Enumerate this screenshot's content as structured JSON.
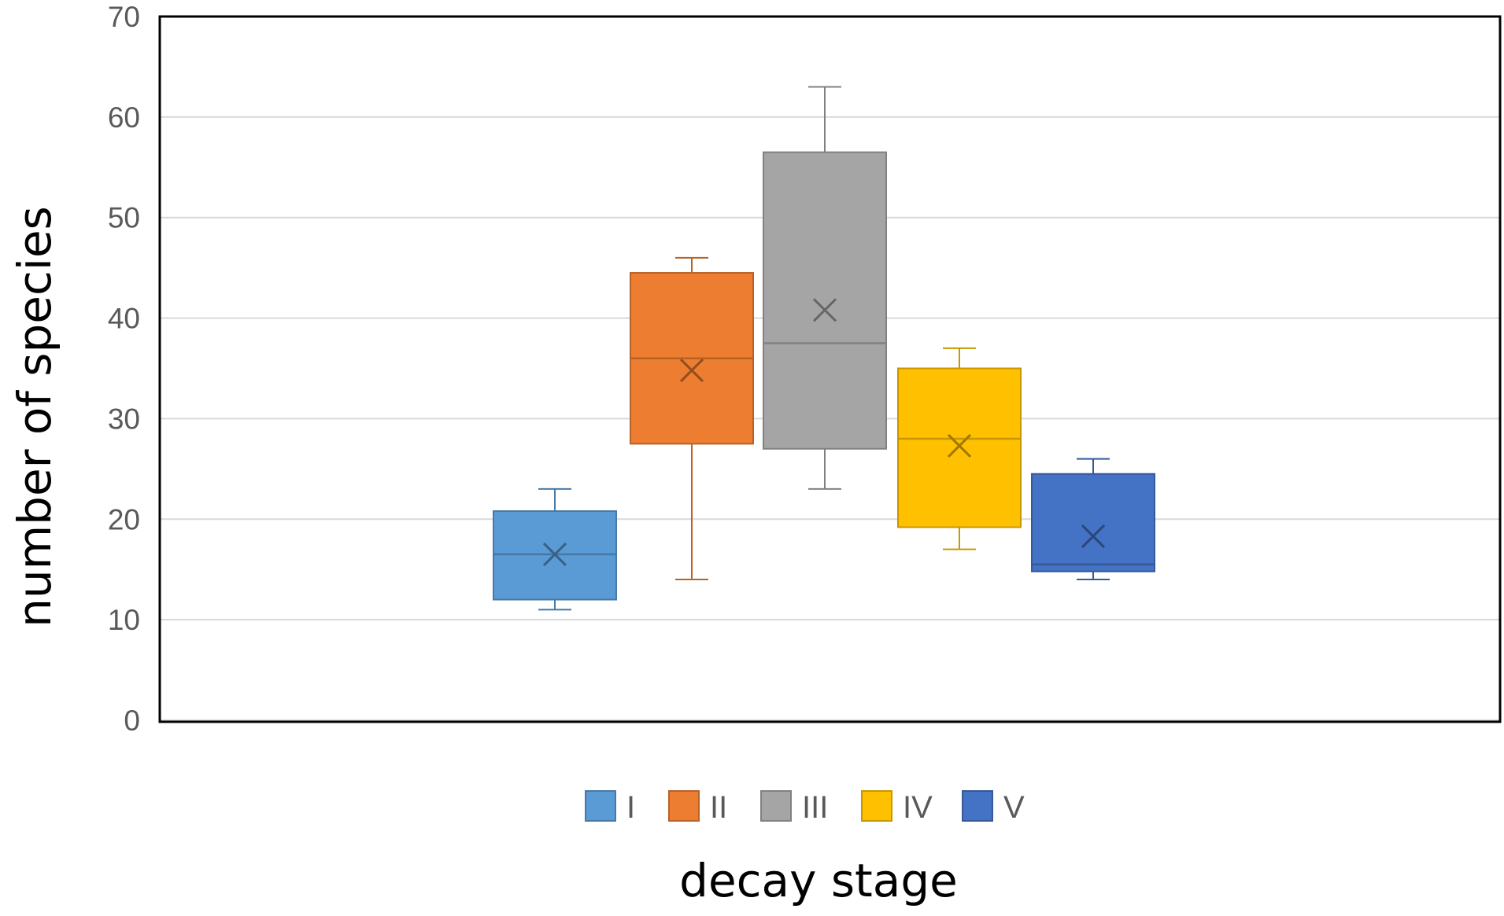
{
  "chart_data": {
    "type": "box",
    "xlabel": "decay stage",
    "ylabel": "number of species",
    "ylim": [
      0,
      70
    ],
    "yticks": [
      0,
      10,
      20,
      30,
      40,
      50,
      60,
      70
    ],
    "grid": true,
    "legend_position": "bottom",
    "series": [
      {
        "name": "I",
        "color": "#5B9BD5",
        "min": 11,
        "q1": 12,
        "median": 16.5,
        "mean": 16.5,
        "q3": 20.8,
        "max": 23
      },
      {
        "name": "II",
        "color": "#ED7D31",
        "min": 14,
        "q1": 27.5,
        "median": 36,
        "mean": 34.8,
        "q3": 44.5,
        "max": 46
      },
      {
        "name": "III",
        "color": "#A5A5A5",
        "min": 23,
        "q1": 27,
        "median": 37.5,
        "mean": 40.8,
        "q3": 56.5,
        "max": 63
      },
      {
        "name": "IV",
        "color": "#FFC000",
        "min": 17,
        "q1": 19.2,
        "median": 28,
        "mean": 27.3,
        "q3": 35,
        "max": 37
      },
      {
        "name": "V",
        "color": "#4472C4",
        "min": 14,
        "q1": 14.8,
        "median": 15.5,
        "mean": 18.3,
        "q3": 24.5,
        "max": 26
      }
    ]
  }
}
